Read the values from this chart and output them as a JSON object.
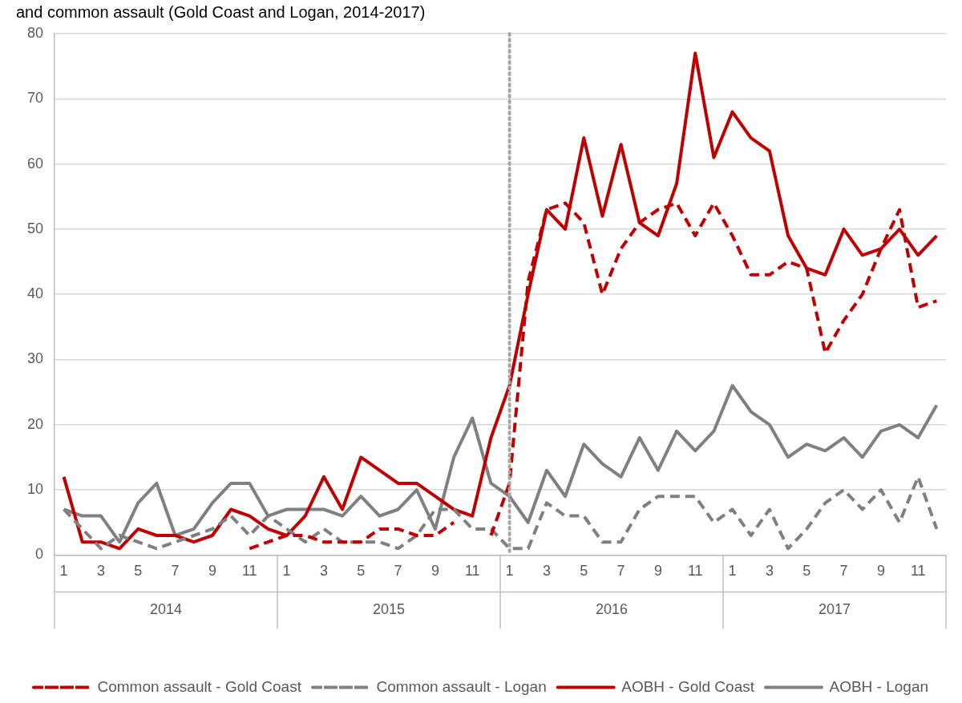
{
  "chart_data": {
    "type": "line",
    "title": "and common assault (Gold Coast and Logan, 2014-2017)",
    "x": [
      "2014-01",
      "2014-02",
      "2014-03",
      "2014-04",
      "2014-05",
      "2014-06",
      "2014-07",
      "2014-08",
      "2014-09",
      "2014-10",
      "2014-11",
      "2014-12",
      "2015-01",
      "2015-02",
      "2015-03",
      "2015-04",
      "2015-05",
      "2015-06",
      "2015-07",
      "2015-08",
      "2015-09",
      "2015-10",
      "2015-11",
      "2015-12",
      "2016-01",
      "2016-02",
      "2016-03",
      "2016-04",
      "2016-05",
      "2016-06",
      "2016-07",
      "2016-08",
      "2016-09",
      "2016-10",
      "2016-11",
      "2016-12",
      "2017-01",
      "2017-02",
      "2017-03",
      "2017-04",
      "2017-05",
      "2017-06",
      "2017-07",
      "2017-08",
      "2017-09",
      "2017-10",
      "2017-11",
      "2017-12"
    ],
    "xlim": [
      "2013-12-16",
      "2017-12-16"
    ],
    "xticks": [
      {
        "value": "2014-01",
        "label": "1"
      },
      {
        "value": "2014-03",
        "label": "3"
      },
      {
        "value": "2014-05",
        "label": "5"
      },
      {
        "value": "2014-07",
        "label": "7"
      },
      {
        "value": "2014-09",
        "label": "9"
      },
      {
        "value": "2014-11",
        "label": "11"
      },
      {
        "value": "2015-01",
        "label": "1"
      },
      {
        "value": "2015-03",
        "label": "3"
      },
      {
        "value": "2015-05",
        "label": "5"
      },
      {
        "value": "2015-07",
        "label": "7"
      },
      {
        "value": "2015-09",
        "label": "9"
      },
      {
        "value": "2015-11",
        "label": "11"
      },
      {
        "value": "2016-01",
        "label": "1"
      },
      {
        "value": "2016-03",
        "label": "3"
      },
      {
        "value": "2016-05",
        "label": "5"
      },
      {
        "value": "2016-07",
        "label": "7"
      },
      {
        "value": "2016-09",
        "label": "9"
      },
      {
        "value": "2016-11",
        "label": "11"
      },
      {
        "value": "2017-01",
        "label": "1"
      },
      {
        "value": "2017-03",
        "label": "3"
      },
      {
        "value": "2017-05",
        "label": "5"
      },
      {
        "value": "2017-07",
        "label": "7"
      },
      {
        "value": "2017-09",
        "label": "9"
      },
      {
        "value": "2017-11",
        "label": "11"
      }
    ],
    "ylim": [
      0,
      80
    ],
    "yticks": [
      0,
      10,
      20,
      30,
      40,
      50,
      60,
      70,
      80
    ],
    "grid": "y",
    "legend": "bottom",
    "marker": "none",
    "series": [
      {
        "name": "Common assault - Gold Coast",
        "color": "#c00000",
        "line_style": "dashed",
        "values": [
          null,
          null,
          null,
          null,
          null,
          null,
          null,
          null,
          null,
          null,
          1,
          2,
          3,
          3,
          2,
          2,
          2,
          4,
          4,
          3,
          3,
          5,
          null,
          3,
          11,
          42,
          53,
          54,
          51,
          40,
          47,
          51,
          53,
          54,
          49,
          54,
          49,
          43,
          43,
          45,
          44,
          31,
          36,
          40,
          47,
          53,
          38,
          39
        ]
      },
      {
        "name": "Common assault - Logan",
        "color": "#808080",
        "line_style": "dashed",
        "values": [
          7,
          4,
          1,
          3,
          2,
          1,
          2,
          3,
          4,
          6,
          3,
          6,
          4,
          2,
          4,
          2,
          2,
          2,
          1,
          3,
          7,
          7,
          4,
          4,
          1,
          1,
          8,
          6,
          6,
          2,
          2,
          7,
          9,
          9,
          9,
          5,
          7,
          3,
          7,
          1,
          4,
          8,
          10,
          7,
          10,
          5,
          12,
          4
        ]
      },
      {
        "name": "AOBH - Gold Coast",
        "color": "#c00000",
        "line_style": "solid",
        "values": [
          12,
          2,
          2,
          1,
          4,
          3,
          3,
          2,
          3,
          7,
          6,
          4,
          3,
          6,
          12,
          7,
          15,
          13,
          11,
          11,
          9,
          7,
          6,
          18,
          26,
          40,
          53,
          50,
          64,
          52,
          63,
          51,
          49,
          57,
          77,
          61,
          68,
          64,
          62,
          49,
          44,
          43,
          50,
          46,
          47,
          50,
          46,
          49
        ]
      },
      {
        "name": "AOBH - Logan",
        "color": "#808080",
        "line_style": "solid",
        "values": [
          7,
          6,
          6,
          2,
          8,
          11,
          3,
          4,
          8,
          11,
          11,
          6,
          7,
          7,
          7,
          6,
          9,
          6,
          7,
          10,
          4,
          15,
          21,
          11,
          9,
          5,
          13,
          9,
          17,
          14,
          12,
          18,
          13,
          19,
          16,
          19,
          26,
          22,
          20,
          15,
          17,
          16,
          18,
          15,
          19,
          20,
          18,
          23
        ]
      }
    ],
    "ref_lines": [
      {
        "axis": "x",
        "value": "2016-01",
        "color": "#a6a6a6",
        "line_style": "dotted"
      }
    ],
    "annotations": [
      "2014",
      "2015",
      "2016",
      "2017"
    ]
  }
}
